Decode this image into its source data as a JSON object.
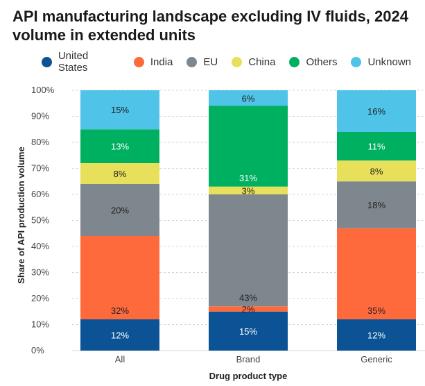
{
  "title_line1": "API manufacturing landscape excluding IV fluids, 2024",
  "title_line2": "volume in extended units",
  "chart_data": {
    "type": "bar",
    "stacked": true,
    "categories": [
      "All",
      "Brand",
      "Generic"
    ],
    "series": [
      {
        "name": "United States",
        "color": "#0b5394",
        "values": [
          12,
          15,
          12
        ],
        "labels": [
          "12%",
          "15%",
          "12%"
        ],
        "label_color": "#ffffff"
      },
      {
        "name": "India",
        "color": "#ff6a3d",
        "values": [
          32,
          2,
          35
        ],
        "labels": [
          "32%",
          "2%",
          "35%"
        ],
        "label_color": "#222222"
      },
      {
        "name": "EU",
        "color": "#7e878d",
        "values": [
          20,
          43,
          18
        ],
        "labels": [
          "20%",
          "43%",
          "18%"
        ],
        "label_color": "#222222"
      },
      {
        "name": "China",
        "color": "#e8e05a",
        "values": [
          8,
          3,
          8
        ],
        "labels": [
          "8%",
          "3%",
          "8%"
        ],
        "label_color": "#222222"
      },
      {
        "name": "Others",
        "color": "#00b061",
        "values": [
          13,
          31,
          11
        ],
        "labels": [
          "13%",
          "31%",
          "11%"
        ],
        "label_color": "#ffffff"
      },
      {
        "name": "Unknown",
        "color": "#4fc3e8",
        "values": [
          15,
          6,
          16
        ],
        "labels": [
          "15%",
          "6%",
          "16%"
        ],
        "label_color": "#222222"
      }
    ],
    "xlabel": "Drug product type",
    "ylabel": "Share of API production volume",
    "ylim": [
      0,
      100
    ],
    "yticks": [
      "0%",
      "10%",
      "20%",
      "30%",
      "40%",
      "50%",
      "60%",
      "70%",
      "80%",
      "90%",
      "100%"
    ],
    "grid": "horizontal dashed",
    "legend_position": "top"
  }
}
